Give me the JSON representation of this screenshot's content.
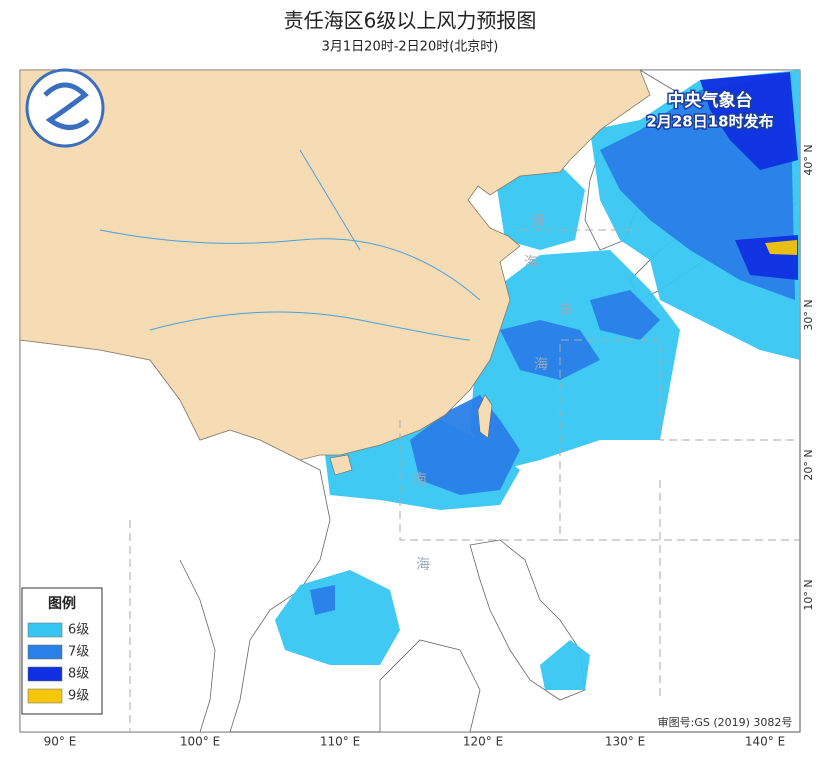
{
  "header": {
    "title": "责任海区6级以上风力预报图",
    "subtitle": "3月1日20时-2日20时(北京时)"
  },
  "issuer": {
    "agency": "中央气象台",
    "issued": "2月28日18时发布"
  },
  "legend": {
    "title": "图例",
    "items": [
      {
        "label": "6级",
        "color": "#35c6f2"
      },
      {
        "label": "7级",
        "color": "#2a80e8"
      },
      {
        "label": "8级",
        "color": "#0f2fe0"
      },
      {
        "label": "9级",
        "color": "#f6c60a"
      }
    ]
  },
  "longitudes": [
    "90° E",
    "100° E",
    "110° E",
    "120° E",
    "130° E",
    "140° E"
  ],
  "latitudes": [
    "40° N",
    "30° N",
    "20° N",
    "10° N"
  ],
  "sea_labels": [
    "黄",
    "海",
    "东",
    "海",
    "南",
    "海"
  ],
  "footer": {
    "approval": "审图号:GS (2019) 3082号"
  }
}
